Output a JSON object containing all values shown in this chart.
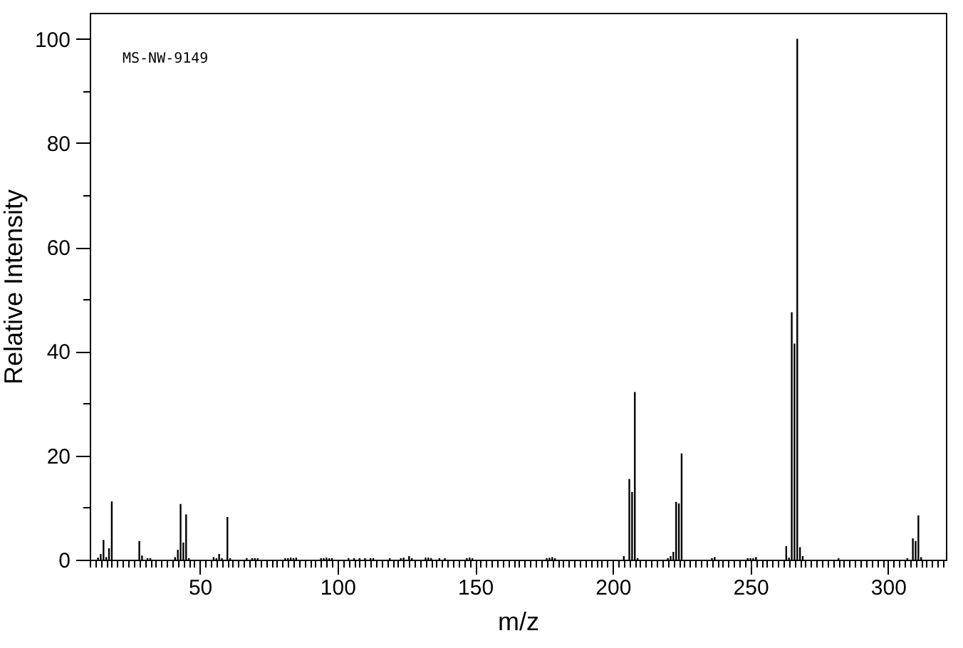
{
  "chart_data": {
    "type": "bar",
    "xlabel": "m/z",
    "ylabel": "Relative Intensity",
    "annotations": [
      "MS-NW-9149"
    ],
    "color": "#000000",
    "grid": false,
    "x": [
      13,
      14,
      15,
      16,
      17,
      18,
      28,
      29,
      31,
      32,
      41,
      42,
      43,
      44,
      45,
      46,
      55,
      56,
      57,
      58,
      60,
      61,
      67,
      69,
      70,
      71,
      81,
      82,
      83,
      84,
      85,
      94,
      95,
      96,
      97,
      98,
      104,
      106,
      108,
      110,
      112,
      113,
      119,
      123,
      124,
      126,
      127,
      132,
      133,
      134,
      137,
      139,
      147,
      148,
      149,
      176,
      177,
      178,
      179,
      204,
      206,
      207,
      208,
      209,
      220,
      221,
      222,
      223,
      224,
      225,
      236,
      237,
      249,
      250,
      251,
      252,
      263,
      264,
      265,
      266,
      267,
      268,
      269,
      282,
      307,
      309,
      310,
      311,
      312
    ],
    "values": [
      0.4,
      1.1,
      3.8,
      0.5,
      2.2,
      11.2,
      3.6,
      0.8,
      0.3,
      0.3,
      0.5,
      1.9,
      10.7,
      3.3,
      8.7,
      0.3,
      0.5,
      0.3,
      1.1,
      0.3,
      8.2,
      0.3,
      0.3,
      0.3,
      0.3,
      0.3,
      0.3,
      0.3,
      0.4,
      0.3,
      0.4,
      0.3,
      0.3,
      0.4,
      0.3,
      0.3,
      0.3,
      0.3,
      0.3,
      0.3,
      0.3,
      0.3,
      0.3,
      0.3,
      0.4,
      0.7,
      0.3,
      0.4,
      0.4,
      0.3,
      0.3,
      0.3,
      0.3,
      0.4,
      0.3,
      0.3,
      0.4,
      0.5,
      0.3,
      0.7,
      15.5,
      13,
      32.2,
      0.3,
      0.3,
      0.7,
      1.5,
      11.1,
      10.8,
      20.4,
      0.3,
      0.5,
      0.3,
      0.3,
      0.3,
      0.5,
      2.6,
      0.4,
      47.5,
      41.5,
      100,
      2.4,
      0.7,
      0.3,
      0.3,
      4.1,
      3.6,
      8.5,
      0.5
    ],
    "xlim": [
      10,
      321
    ],
    "ylim": [
      0,
      105
    ],
    "xticks": [
      {
        "value": 10,
        "label": null
      },
      {
        "value": 12,
        "label": null
      },
      {
        "value": 14,
        "label": null
      },
      {
        "value": 16,
        "label": null
      },
      {
        "value": 18,
        "label": null
      },
      {
        "value": 20,
        "label": null
      },
      {
        "value": 22,
        "label": null
      },
      {
        "value": 24,
        "label": null
      },
      {
        "value": 26,
        "label": null
      },
      {
        "value": 28,
        "label": null
      },
      {
        "value": 30,
        "label": null
      },
      {
        "value": 32,
        "label": null
      },
      {
        "value": 34,
        "label": null
      },
      {
        "value": 36,
        "label": null
      },
      {
        "value": 38,
        "label": null
      },
      {
        "value": 40,
        "label": null
      },
      {
        "value": 42,
        "label": null
      },
      {
        "value": 44,
        "label": null
      },
      {
        "value": 46,
        "label": null
      },
      {
        "value": 48,
        "label": null
      },
      50,
      {
        "value": 52,
        "label": null
      },
      {
        "value": 54,
        "label": null
      },
      {
        "value": 56,
        "label": null
      },
      {
        "value": 58,
        "label": null
      },
      {
        "value": 60,
        "label": null
      },
      {
        "value": 62,
        "label": null
      },
      {
        "value": 64,
        "label": null
      },
      {
        "value": 66,
        "label": null
      },
      {
        "value": 68,
        "label": null
      },
      {
        "value": 70,
        "label": null
      },
      {
        "value": 72,
        "label": null
      },
      {
        "value": 74,
        "label": null
      },
      {
        "value": 76,
        "label": null
      },
      {
        "value": 78,
        "label": null
      },
      {
        "value": 80,
        "label": null
      },
      {
        "value": 82,
        "label": null
      },
      {
        "value": 84,
        "label": null
      },
      {
        "value": 86,
        "label": null
      },
      {
        "value": 88,
        "label": null
      },
      {
        "value": 90,
        "label": null
      },
      {
        "value": 92,
        "label": null
      },
      {
        "value": 94,
        "label": null
      },
      {
        "value": 96,
        "label": null
      },
      {
        "value": 98,
        "label": null
      },
      100,
      {
        "value": 102,
        "label": null
      },
      {
        "value": 104,
        "label": null
      },
      {
        "value": 106,
        "label": null
      },
      {
        "value": 108,
        "label": null
      },
      {
        "value": 110,
        "label": null
      },
      {
        "value": 112,
        "label": null
      },
      {
        "value": 114,
        "label": null
      },
      {
        "value": 116,
        "label": null
      },
      {
        "value": 118,
        "label": null
      },
      {
        "value": 120,
        "label": null
      },
      {
        "value": 122,
        "label": null
      },
      {
        "value": 124,
        "label": null
      },
      {
        "value": 126,
        "label": null
      },
      {
        "value": 128,
        "label": null
      },
      {
        "value": 130,
        "label": null
      },
      {
        "value": 132,
        "label": null
      },
      {
        "value": 134,
        "label": null
      },
      {
        "value": 136,
        "label": null
      },
      {
        "value": 138,
        "label": null
      },
      {
        "value": 140,
        "label": null
      },
      {
        "value": 142,
        "label": null
      },
      {
        "value": 144,
        "label": null
      },
      {
        "value": 146,
        "label": null
      },
      {
        "value": 148,
        "label": null
      },
      150,
      {
        "value": 152,
        "label": null
      },
      {
        "value": 154,
        "label": null
      },
      {
        "value": 156,
        "label": null
      },
      {
        "value": 158,
        "label": null
      },
      {
        "value": 160,
        "label": null
      },
      {
        "value": 162,
        "label": null
      },
      {
        "value": 164,
        "label": null
      },
      {
        "value": 166,
        "label": null
      },
      {
        "value": 168,
        "label": null
      },
      {
        "value": 170,
        "label": null
      },
      {
        "value": 172,
        "label": null
      },
      {
        "value": 174,
        "label": null
      },
      {
        "value": 176,
        "label": null
      },
      {
        "value": 178,
        "label": null
      },
      {
        "value": 180,
        "label": null
      },
      {
        "value": 182,
        "label": null
      },
      {
        "value": 184,
        "label": null
      },
      {
        "value": 186,
        "label": null
      },
      {
        "value": 188,
        "label": null
      },
      {
        "value": 190,
        "label": null
      },
      {
        "value": 192,
        "label": null
      },
      {
        "value": 194,
        "label": null
      },
      {
        "value": 196,
        "label": null
      },
      {
        "value": 198,
        "label": null
      },
      200,
      {
        "value": 202,
        "label": null
      },
      {
        "value": 204,
        "label": null
      },
      {
        "value": 206,
        "label": null
      },
      {
        "value": 208,
        "label": null
      },
      {
        "value": 210,
        "label": null
      },
      {
        "value": 212,
        "label": null
      },
      {
        "value": 214,
        "label": null
      },
      {
        "value": 216,
        "label": null
      },
      {
        "value": 218,
        "label": null
      },
      {
        "value": 220,
        "label": null
      },
      {
        "value": 222,
        "label": null
      },
      {
        "value": 224,
        "label": null
      },
      {
        "value": 226,
        "label": null
      },
      {
        "value": 228,
        "label": null
      },
      {
        "value": 230,
        "label": null
      },
      {
        "value": 232,
        "label": null
      },
      {
        "value": 234,
        "label": null
      },
      {
        "value": 236,
        "label": null
      },
      {
        "value": 238,
        "label": null
      },
      {
        "value": 240,
        "label": null
      },
      {
        "value": 242,
        "label": null
      },
      {
        "value": 244,
        "label": null
      },
      {
        "value": 246,
        "label": null
      },
      {
        "value": 248,
        "label": null
      },
      250,
      {
        "value": 252,
        "label": null
      },
      {
        "value": 254,
        "label": null
      },
      {
        "value": 256,
        "label": null
      },
      {
        "value": 258,
        "label": null
      },
      {
        "value": 260,
        "label": null
      },
      {
        "value": 262,
        "label": null
      },
      {
        "value": 264,
        "label": null
      },
      {
        "value": 266,
        "label": null
      },
      {
        "value": 268,
        "label": null
      },
      {
        "value": 270,
        "label": null
      },
      {
        "value": 272,
        "label": null
      },
      {
        "value": 274,
        "label": null
      },
      {
        "value": 276,
        "label": null
      },
      {
        "value": 278,
        "label": null
      },
      {
        "value": 280,
        "label": null
      },
      {
        "value": 282,
        "label": null
      },
      {
        "value": 284,
        "label": null
      },
      {
        "value": 286,
        "label": null
      },
      {
        "value": 288,
        "label": null
      },
      {
        "value": 290,
        "label": null
      },
      {
        "value": 292,
        "label": null
      },
      {
        "value": 294,
        "label": null
      },
      {
        "value": 296,
        "label": null
      },
      {
        "value": 298,
        "label": null
      },
      300,
      {
        "value": 302,
        "label": null
      },
      {
        "value": 304,
        "label": null
      },
      {
        "value": 306,
        "label": null
      },
      {
        "value": 308,
        "label": null
      },
      {
        "value": 310,
        "label": null
      },
      {
        "value": 312,
        "label": null
      },
      {
        "value": 314,
        "label": null
      },
      {
        "value": 316,
        "label": null
      },
      {
        "value": 318,
        "label": null
      },
      {
        "value": 320,
        "label": null
      }
    ],
    "yticks": [
      0,
      {
        "value": 10,
        "label": null
      },
      20,
      {
        "value": 30,
        "label": null
      },
      40,
      {
        "value": 50,
        "label": null
      },
      60,
      {
        "value": 70,
        "label": null
      },
      80,
      {
        "value": 90,
        "label": null
      },
      100
    ]
  }
}
